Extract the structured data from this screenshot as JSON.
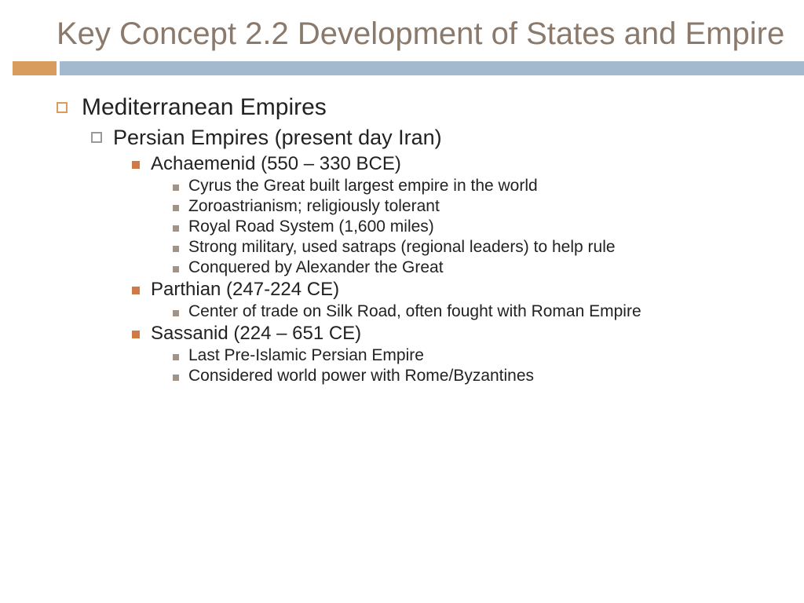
{
  "colors": {
    "title_text": "#8b7a6b",
    "divider_orange": "#d89c5e",
    "divider_blue": "#a3b9ce",
    "bullet_lvl1_border": "#d89c5e",
    "bullet_lvl2_border": "#999999",
    "bullet_lvl3_fill": "#d07a45",
    "bullet_lvl4_fill": "#9f9486",
    "body_text": "#222222",
    "background": "#ffffff"
  },
  "typography": {
    "title_fontsize": 40,
    "lvl1_fontsize": 30,
    "lvl2_fontsize": 27,
    "lvl3_fontsize": 24,
    "lvl4_fontsize": 21,
    "font_family": "Arial"
  },
  "title": "Key Concept 2.2 Development of States and Empire",
  "outline": {
    "lvl1": "Mediterranean Empires",
    "lvl2": "Persian Empires (present day Iran)",
    "empire1": {
      "heading": "Achaemenid (550 – 330 BCE)",
      "points": [
        "Cyrus the Great built largest empire in the world",
        "Zoroastrianism; religiously tolerant",
        "Royal Road System (1,600 miles)",
        "Strong military, used satraps (regional leaders) to help rule",
        "Conquered by Alexander the Great"
      ]
    },
    "empire2": {
      "heading": "Parthian (247-224 CE)",
      "points": [
        "Center of trade on Silk Road, often fought with Roman Empire"
      ]
    },
    "empire3": {
      "heading": "Sassanid (224 – 651 CE)",
      "points": [
        "Last Pre-Islamic Persian Empire",
        "Considered world power with Rome/Byzantines"
      ]
    }
  }
}
